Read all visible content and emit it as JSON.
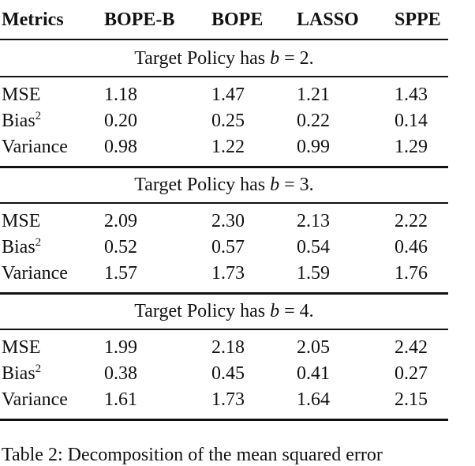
{
  "table": {
    "header": [
      "Metrics",
      "BOPE-B",
      "BOPE",
      "LASSO",
      "SPPE"
    ],
    "sections": [
      {
        "caption": {
          "text": "Target Policy has",
          "var": "b",
          "rest": "= 2."
        },
        "rows": [
          {
            "metric": "MSE",
            "values": [
              "1.18",
              "1.47",
              "1.21",
              "1.43"
            ]
          },
          {
            "metric": "Bias",
            "sup": "2",
            "values": [
              "0.20",
              "0.25",
              "0.22",
              "0.14"
            ]
          },
          {
            "metric": "Variance",
            "values": [
              "0.98",
              "1.22",
              "0.99",
              "1.29"
            ]
          }
        ]
      },
      {
        "caption": {
          "text": "Target Policy has",
          "var": "b",
          "rest": "= 3."
        },
        "rows": [
          {
            "metric": "MSE",
            "values": [
              "2.09",
              "2.30",
              "2.13",
              "2.22"
            ]
          },
          {
            "metric": "Bias",
            "sup": "2",
            "values": [
              "0.52",
              "0.57",
              "0.54",
              "0.46"
            ]
          },
          {
            "metric": "Variance",
            "values": [
              "1.57",
              "1.73",
              "1.59",
              "1.76"
            ]
          }
        ]
      },
      {
        "caption": {
          "text": "Target Policy has",
          "var": "b",
          "rest": "= 4."
        },
        "rows": [
          {
            "metric": "MSE",
            "values": [
              "1.99",
              "2.18",
              "2.05",
              "2.42"
            ]
          },
          {
            "metric": "Bias",
            "sup": "2",
            "values": [
              "0.38",
              "0.45",
              "0.41",
              "0.27"
            ]
          },
          {
            "metric": "Variance",
            "values": [
              "1.61",
              "1.73",
              "1.64",
              "2.15"
            ]
          }
        ]
      }
    ]
  },
  "caption": "Table 2: Decomposition of the mean squared error"
}
